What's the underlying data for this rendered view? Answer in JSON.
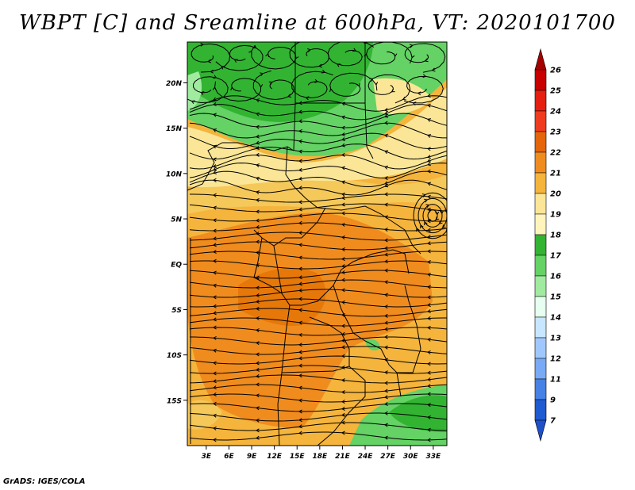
{
  "title": "WBPT [C] and Sreamline at 600hPa, VT: 2020101700",
  "credit": "GrADS: IGES/COLA",
  "map": {
    "lat_labels": [
      "20N",
      "15N",
      "10N",
      "5N",
      "EQ",
      "5S",
      "10S",
      "15S"
    ],
    "lon_labels": [
      "3E",
      "6E",
      "9E",
      "12E",
      "15E",
      "18E",
      "21E",
      "24E",
      "27E",
      "30E",
      "33E"
    ],
    "lat_range": [
      -20,
      24.5
    ],
    "lon_range": [
      0.5,
      34.8
    ]
  },
  "colorbar": {
    "labels": [
      "26",
      "25",
      "24",
      "23",
      "22",
      "21",
      "20",
      "19",
      "18",
      "17",
      "16",
      "15",
      "14",
      "13",
      "12",
      "11",
      "9",
      "7"
    ],
    "colors": [
      "#a50000",
      "#c80000",
      "#e61e10",
      "#f03c1e",
      "#e6640a",
      "#f08c1e",
      "#f5b43c",
      "#fae696",
      "#fff5bc",
      "#32b432",
      "#64d264",
      "#a0eba0",
      "#e6fff0",
      "#c8e6ff",
      "#a0c8ff",
      "#78aaf5",
      "#4682e6",
      "#1e5ad2",
      "#1e50c8"
    ]
  }
}
